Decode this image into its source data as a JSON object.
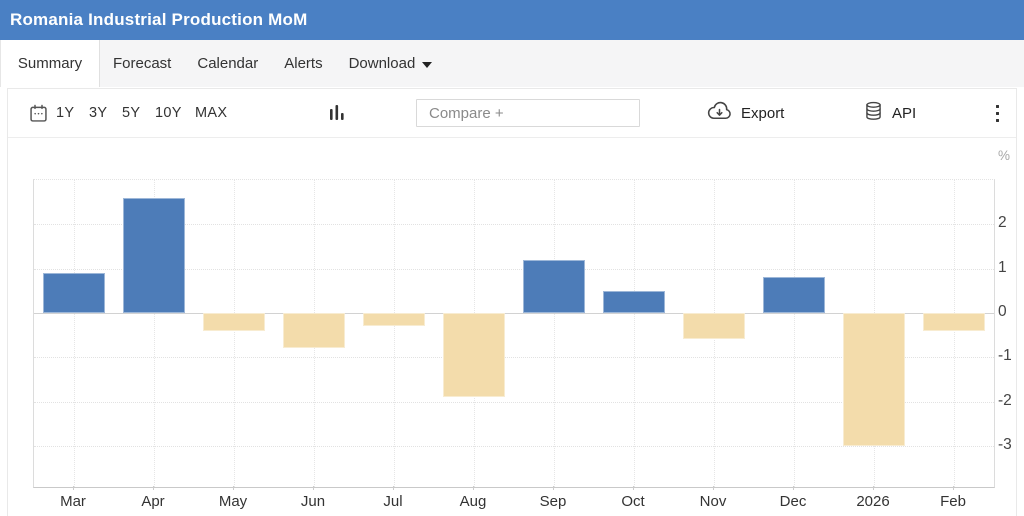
{
  "header": {
    "title": "Romania Industrial Production MoM",
    "bg_color": "#4a80c4"
  },
  "tabs": {
    "items": [
      {
        "label": "Summary",
        "active": true
      },
      {
        "label": "Forecast",
        "active": false
      },
      {
        "label": "Calendar",
        "active": false
      },
      {
        "label": "Alerts",
        "active": false
      },
      {
        "label": "Download",
        "active": false,
        "has_caret": true
      }
    ]
  },
  "toolbar": {
    "ranges": [
      "1Y",
      "3Y",
      "5Y",
      "10Y",
      "MAX"
    ],
    "compare_placeholder": "Compare +",
    "export_label": "Export",
    "api_label": "API",
    "icons": [
      "calendar-icon",
      "bar-chart-icon",
      "export-cloud-icon",
      "api-database-icon",
      "kebab-menu-icon"
    ]
  },
  "chart_data": {
    "type": "bar",
    "title": "Romania Industrial Production MoM",
    "categories": [
      "Mar",
      "Apr",
      "May",
      "Jun",
      "Jul",
      "Aug",
      "Sep",
      "Oct",
      "Nov",
      "Dec",
      "2026",
      "Feb"
    ],
    "values": [
      0.9,
      2.6,
      -0.4,
      -0.8,
      -0.3,
      -1.9,
      1.2,
      0.5,
      -0.6,
      0.8,
      -3.0,
      -0.4
    ],
    "ylabel": "%",
    "yticks": [
      2,
      1,
      0,
      -1,
      -2,
      -3
    ],
    "ylim": [
      -3.93,
      3.0
    ],
    "grid": true,
    "legend": false,
    "colors": {
      "positive": "#4d7cb8",
      "negative": "#f3dcab"
    }
  }
}
